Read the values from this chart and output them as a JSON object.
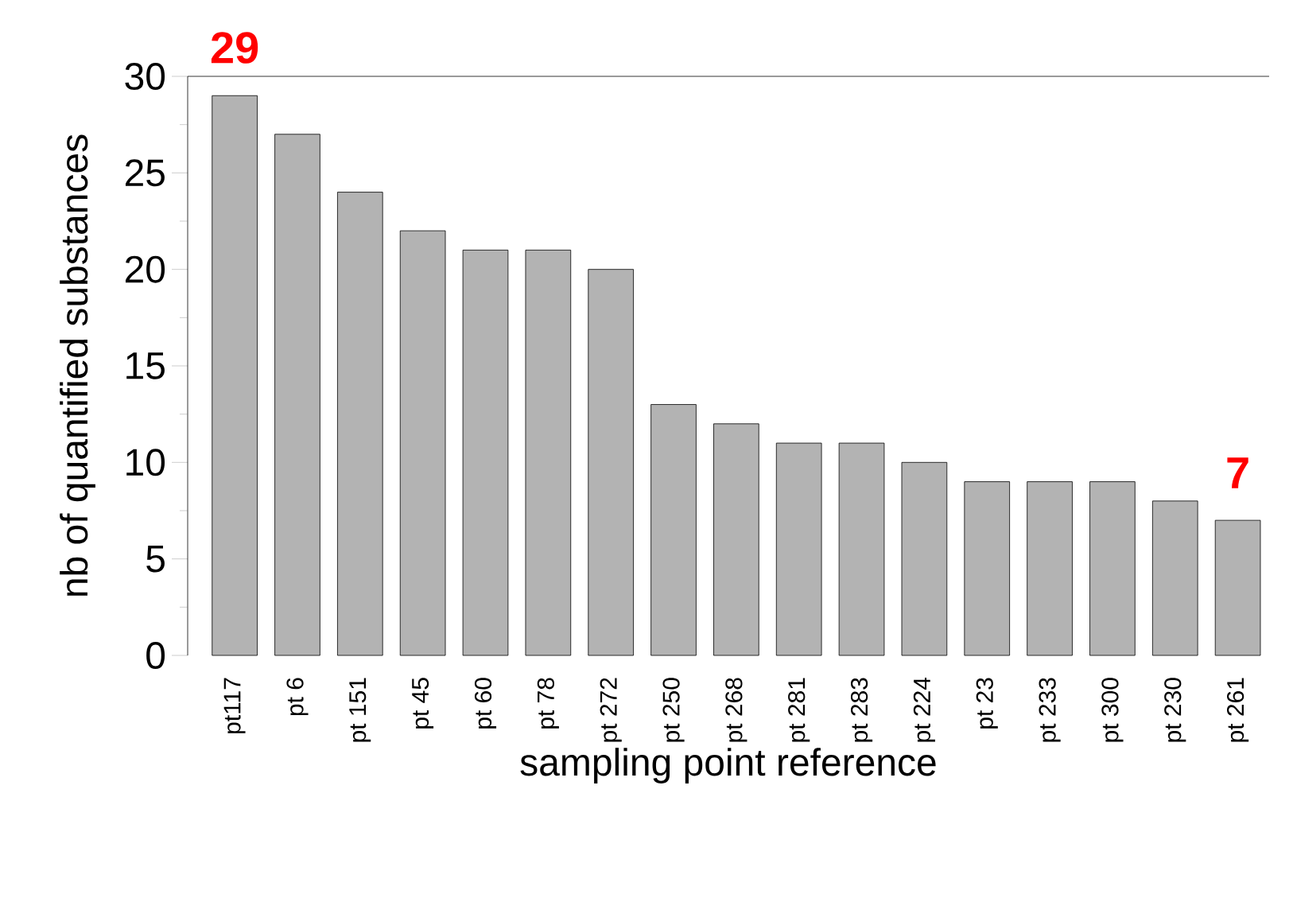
{
  "chart_data": {
    "type": "bar",
    "xlabel": "sampling point reference",
    "ylabel": "nb of quantified substances",
    "categories": [
      "pt117",
      "pt 6",
      "pt 151",
      "pt 45",
      "pt 60",
      "pt 78",
      "pt 272",
      "pt 250",
      "pt 268",
      "pt 281",
      "pt 283",
      "pt 224",
      "pt 23",
      "pt 233",
      "pt 300",
      "pt 230",
      "pt 261"
    ],
    "values": [
      29,
      27,
      24,
      22,
      21,
      21,
      20,
      13,
      12,
      11,
      11,
      10,
      9,
      9,
      9,
      8,
      7
    ],
    "color": "#b3b3b3",
    "ylim": [
      0,
      30
    ],
    "yticks": [
      0,
      {
        "value": 2.5,
        "label": null
      },
      5,
      {
        "value": 7.5,
        "label": null
      },
      10,
      {
        "value": 12.5,
        "label": null
      },
      15,
      {
        "value": 17.5,
        "label": null
      },
      20,
      {
        "value": 22.5,
        "label": null
      },
      25,
      {
        "value": 27.5,
        "label": null
      },
      30
    ],
    "annotations": [
      {
        "text": "29",
        "x": "pt117",
        "y": 29
      },
      {
        "text": "7",
        "x": "pt 261",
        "y": 7
      }
    ],
    "grid": false
  }
}
